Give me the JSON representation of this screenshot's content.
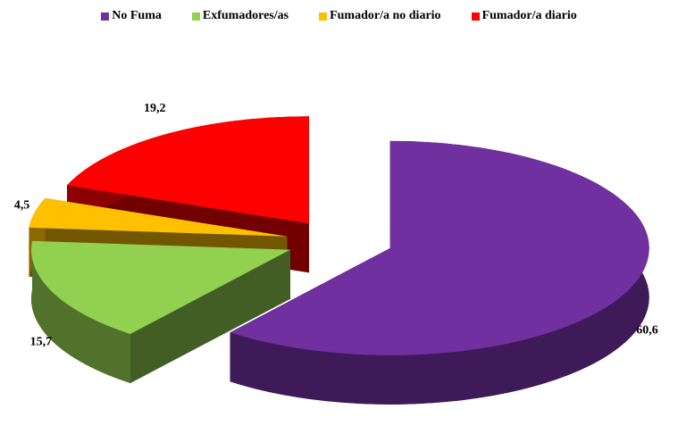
{
  "chart_data": {
    "type": "pie",
    "categories": [
      "No Fuma",
      "Exfumadores/as",
      "Fumador/a no diario",
      "Fumador/a diario"
    ],
    "values": [
      60.6,
      15.7,
      4.5,
      19.2
    ],
    "value_labels": [
      "60,6",
      "15,7",
      "4,5",
      "19,2"
    ],
    "colors": [
      "#7030a0",
      "#92d050",
      "#ffc000",
      "#ff0000"
    ],
    "legend": "top"
  }
}
